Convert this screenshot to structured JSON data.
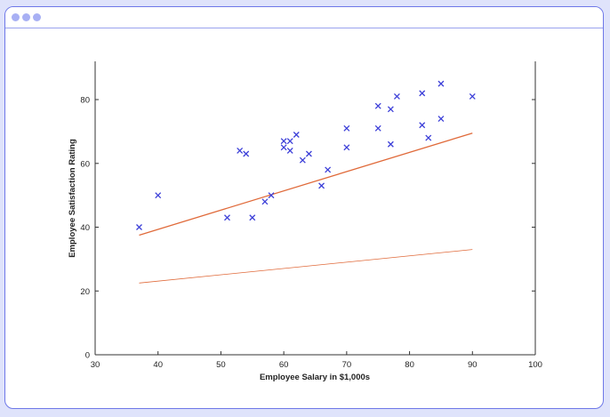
{
  "window": {
    "controls": [
      "window-dot-icon",
      "window-dot-icon",
      "window-dot-icon"
    ],
    "control_color": "#a8b0f4",
    "border_color": "#6e78e8"
  },
  "chart_data": {
    "type": "scatter",
    "xlabel": "Employee Salary in $1,000s",
    "ylabel": "Employee Satisfaction Rating",
    "xlim": [
      30,
      100
    ],
    "ylim": [
      0,
      92
    ],
    "xticks": [
      30,
      40,
      50,
      60,
      70,
      80,
      90,
      100
    ],
    "yticks": [
      0,
      20,
      40,
      60,
      80
    ],
    "grid": false,
    "marker_color": "#3c3fd8",
    "line_color": "#e06a3a",
    "points": [
      {
        "x": 37,
        "y": 40
      },
      {
        "x": 40,
        "y": 50
      },
      {
        "x": 51,
        "y": 43
      },
      {
        "x": 53,
        "y": 64
      },
      {
        "x": 54,
        "y": 63
      },
      {
        "x": 55,
        "y": 43
      },
      {
        "x": 57,
        "y": 48
      },
      {
        "x": 58,
        "y": 50
      },
      {
        "x": 60,
        "y": 67
      },
      {
        "x": 60,
        "y": 65
      },
      {
        "x": 61,
        "y": 67
      },
      {
        "x": 61,
        "y": 64
      },
      {
        "x": 62,
        "y": 69
      },
      {
        "x": 63,
        "y": 61
      },
      {
        "x": 64,
        "y": 63
      },
      {
        "x": 66,
        "y": 53
      },
      {
        "x": 67,
        "y": 58
      },
      {
        "x": 70,
        "y": 71
      },
      {
        "x": 70,
        "y": 65
      },
      {
        "x": 75,
        "y": 78
      },
      {
        "x": 75,
        "y": 71
      },
      {
        "x": 77,
        "y": 77
      },
      {
        "x": 77,
        "y": 66
      },
      {
        "x": 78,
        "y": 81
      },
      {
        "x": 82,
        "y": 82
      },
      {
        "x": 82,
        "y": 72
      },
      {
        "x": 83,
        "y": 68
      },
      {
        "x": 85,
        "y": 85
      },
      {
        "x": 85,
        "y": 74
      },
      {
        "x": 90,
        "y": 81
      }
    ],
    "lines": [
      {
        "x": [
          37,
          90
        ],
        "y": [
          37.5,
          69.5
        ],
        "style": "thick"
      },
      {
        "x": [
          37,
          90
        ],
        "y": [
          22.5,
          33
        ],
        "style": "thin"
      }
    ]
  }
}
